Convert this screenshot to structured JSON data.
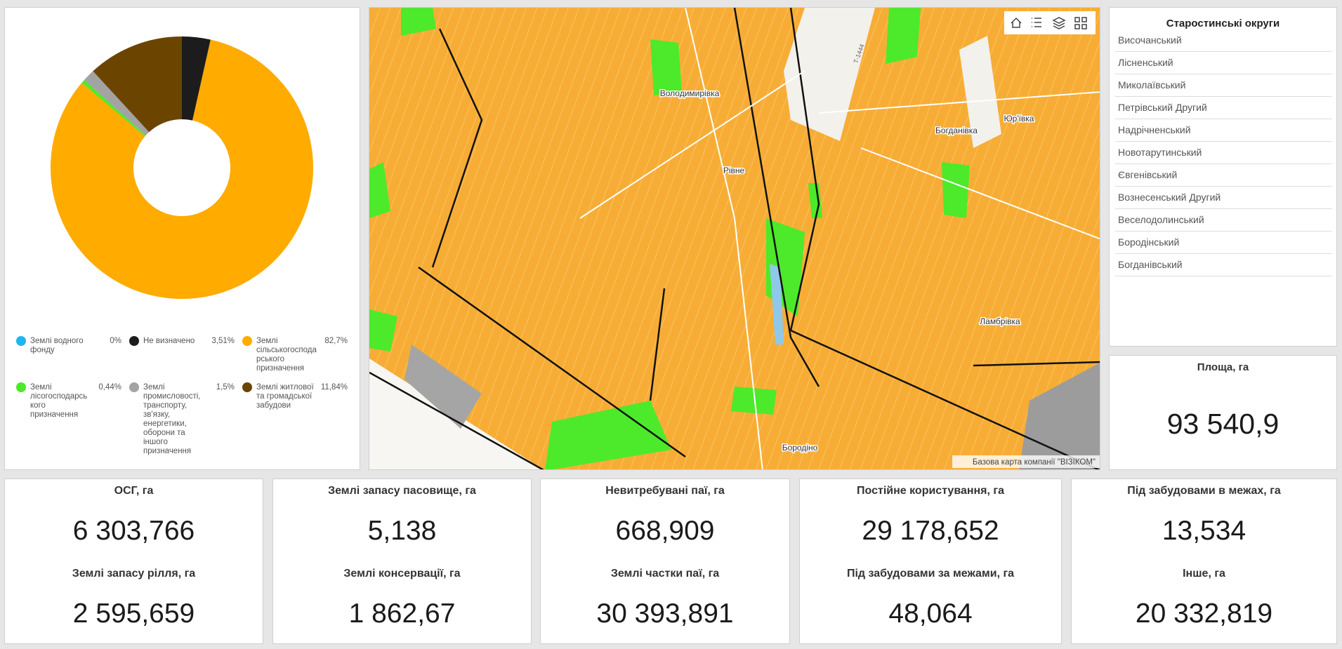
{
  "chart_data": {
    "type": "pie",
    "categories": [
      "Землі водного фонду",
      "Не визначено",
      "Землі сільськогосподарського призначення",
      "Землі лісогосподарського призначення",
      "Землі промисловості, транспорту, зв'язку, енергетики, оборони та іншого призначення",
      "Землі житлової та громадської забудови"
    ],
    "values": [
      0,
      3.51,
      82.7,
      0.44,
      1.5,
      11.84
    ],
    "value_labels": [
      "0%",
      "3,51%",
      "82,7%",
      "0,44%",
      "1,5%",
      "11,84%"
    ],
    "colors": [
      "#1eb6f2",
      "#1c1c1c",
      "#ffab00",
      "#4cea2a",
      "#a3a3a3",
      "#6b4500"
    ]
  },
  "map": {
    "labels": [
      "Володимирівка",
      "Рівне",
      "Богданівка",
      "Юр'ївка",
      "Ламбрівка",
      "Бородіно"
    ],
    "road_label": "Т-1444",
    "attribution": "Базова карта компанії \"ВІЗІКОМ\""
  },
  "districts": {
    "title": "Старостинські округи",
    "items": [
      "Височанський",
      "Лісненський",
      "Миколаївський",
      "Петрівський Другий",
      "Надрічненський",
      "Новотарутинський",
      "Євгенівський",
      "Вознесенський Другий",
      "Веселодолинський",
      "Бородінський",
      "Богданівський"
    ]
  },
  "area": {
    "title": "Площа, га",
    "value": "93 540,9"
  },
  "cards": [
    [
      {
        "title": "ОСГ, га",
        "value": "6 303,766"
      },
      {
        "title": "Землі запасу рілля, га",
        "value": "2 595,659"
      }
    ],
    [
      {
        "title": "Землі запасу пасовище, га",
        "value": "5,138"
      },
      {
        "title": "Землі консервації, га",
        "value": "1 862,67"
      }
    ],
    [
      {
        "title": "Невитребувані паї, га",
        "value": "668,909"
      },
      {
        "title": "Землі частки паї, га",
        "value": "30 393,891"
      }
    ],
    [
      {
        "title": "Постійне користування, га",
        "value": "29 178,652"
      },
      {
        "title": "Під забудовами за межами, га",
        "value": "48,064"
      }
    ],
    [
      {
        "title": "Під забудовами в межах, га",
        "value": "13,534"
      },
      {
        "title": "Інше, га",
        "value": "20 332,819"
      }
    ]
  ]
}
